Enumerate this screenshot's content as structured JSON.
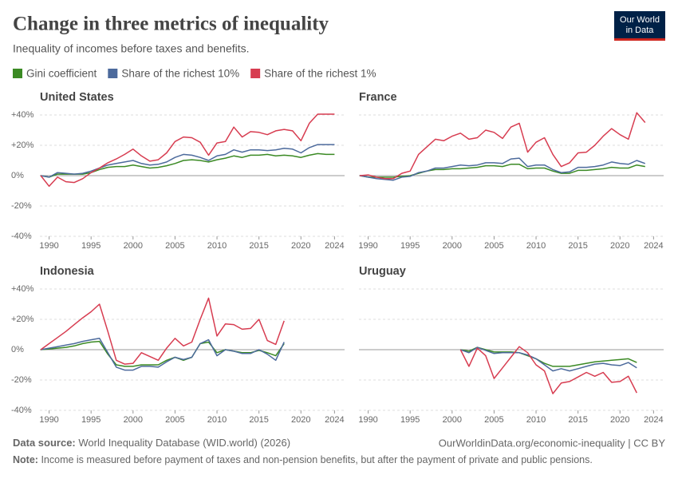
{
  "header": {
    "title": "Change in three metrics of inequality",
    "subtitle": "Inequality of incomes before taxes and benefits.",
    "logo": [
      "Our World",
      "in Data"
    ]
  },
  "footer": {
    "source_label": "Data source:",
    "source": "World Inequality Database (WID.world) (2026)",
    "link": "OurWorldinData.org/economic-inequality | CC BY",
    "note_label": "Note:",
    "note": "Income is measured before payment of taxes and non-pension benefits, but after the payment of private and public pensions."
  },
  "chart_data": [
    {
      "type": "line",
      "title": "United States",
      "xlim": [
        1988.9,
        2025.2
      ],
      "xticks": [
        1990,
        1995,
        2000,
        2005,
        2010,
        2015,
        2020,
        2024
      ],
      "ylim": [
        -40,
        40
      ],
      "yticks": [
        {
          "value": -40,
          "label": "-40%"
        },
        {
          "value": -20,
          "label": "-20%"
        },
        {
          "value": 0,
          "label": "0%"
        },
        {
          "value": 20,
          "label": "+20%"
        },
        {
          "value": 40,
          "label": "+40%"
        }
      ],
      "x": [
        1989,
        1990,
        1991,
        1992,
        1993,
        1994,
        1995,
        1996,
        1997,
        1998,
        1999,
        2000,
        2001,
        2002,
        2003,
        2004,
        2005,
        2006,
        2007,
        2008,
        2009,
        2010,
        2011,
        2012,
        2013,
        2014,
        2015,
        2016,
        2017,
        2018,
        2019,
        2020,
        2021,
        2022,
        2023,
        2024
      ],
      "series": [
        {
          "name": "Gini coefficient",
          "color": "#3b8a24",
          "values": [
            0,
            -1,
            1,
            1,
            1,
            1,
            2,
            4,
            5.5,
            6,
            6,
            7,
            6,
            5,
            5.5,
            6.5,
            8,
            10,
            10.5,
            10,
            9,
            10.5,
            11.5,
            13,
            12,
            13.5,
            13.5,
            14,
            13,
            13.5,
            13,
            12,
            13.5,
            14.5,
            14,
            14
          ]
        },
        {
          "name": "Share of the richest 10%",
          "color": "#4c6a9c",
          "values": [
            0,
            -1,
            2,
            1.5,
            1,
            1.5,
            3,
            5,
            7,
            8,
            9,
            10,
            8,
            7,
            7.5,
            9,
            12,
            14,
            13.5,
            12,
            10,
            13,
            14,
            17,
            15.5,
            17,
            17,
            16.5,
            17,
            18,
            17.5,
            15,
            18.5,
            20.5,
            20.5,
            20.5
          ]
        },
        {
          "name": "Share of the richest 1%",
          "color": "#d73c50",
          "values": [
            0,
            -7,
            -1,
            -4,
            -4.5,
            -2,
            2,
            5,
            8.5,
            11,
            14,
            17.5,
            13,
            9.5,
            10.5,
            15,
            22.5,
            25.5,
            25,
            22,
            13.5,
            21.5,
            22.5,
            32,
            25.5,
            29,
            28.5,
            27,
            29.5,
            30.5,
            29.5,
            23,
            34.5,
            40.5,
            40.5,
            40.5
          ]
        }
      ]
    },
    {
      "type": "line",
      "title": "France",
      "xlim": [
        1988.9,
        2025.2
      ],
      "xticks": [
        1990,
        1995,
        2000,
        2005,
        2010,
        2015,
        2020,
        2024
      ],
      "ylim": [
        -40,
        40
      ],
      "yticks": [
        -40,
        -20,
        0,
        20,
        40
      ],
      "x": [
        1989,
        1990,
        1991,
        1992,
        1993,
        1994,
        1995,
        1996,
        1997,
        1998,
        1999,
        2000,
        2001,
        2002,
        2003,
        2004,
        2005,
        2006,
        2007,
        2008,
        2009,
        2010,
        2011,
        2012,
        2013,
        2014,
        2015,
        2016,
        2017,
        2018,
        2019,
        2020,
        2021,
        2022,
        2023
      ],
      "series": [
        {
          "name": "Gini coefficient",
          "color": "#3b8a24",
          "values": [
            0,
            -1,
            -1,
            -1,
            -1,
            -0.5,
            0,
            1.5,
            3,
            4,
            4,
            4.5,
            4.5,
            5,
            5.5,
            6.5,
            6.5,
            6,
            7.5,
            7.5,
            4.5,
            5,
            5,
            3,
            1.5,
            1.5,
            3.5,
            3.5,
            4,
            4.5,
            5.5,
            5,
            5,
            7,
            6
          ]
        },
        {
          "name": "Share of the richest 10%",
          "color": "#4c6a9c",
          "values": [
            0,
            -1,
            -2,
            -2.5,
            -3,
            -1,
            -0.5,
            2,
            3,
            5,
            5,
            6,
            7,
            6.5,
            7,
            8.5,
            8.5,
            8,
            11,
            11.5,
            6,
            7,
            7,
            4,
            2,
            2.5,
            5.5,
            5.5,
            6,
            7,
            9,
            8,
            7.5,
            10,
            8
          ]
        },
        {
          "name": "Share of the richest 1%",
          "color": "#d73c50",
          "values": [
            0,
            0.5,
            -1,
            -2,
            -2,
            1.5,
            3,
            14,
            19,
            24,
            23,
            26,
            28,
            24,
            25,
            30,
            28.5,
            24.5,
            32,
            34.5,
            15.5,
            22,
            25,
            14,
            6,
            8.5,
            15,
            15.5,
            20,
            26,
            31,
            27,
            24,
            41.5,
            35
          ]
        }
      ]
    },
    {
      "type": "line",
      "title": "Indonesia",
      "xlim": [
        1988.9,
        2025.2
      ],
      "xticks": [
        1990,
        1995,
        2000,
        2005,
        2010,
        2015,
        2020,
        2024
      ],
      "ylim": [
        -40,
        40
      ],
      "yticks": [
        {
          "value": -40,
          "label": "-40%"
        },
        {
          "value": -20,
          "label": "-20%"
        },
        {
          "value": 0,
          "label": "0%"
        },
        {
          "value": 20,
          "label": "+20%"
        },
        {
          "value": 40,
          "label": "+40%"
        }
      ],
      "x": [
        1989,
        1990,
        1991,
        1992,
        1993,
        1994,
        1995,
        1996,
        1997,
        1998,
        1999,
        2000,
        2001,
        2002,
        2003,
        2004,
        2005,
        2006,
        2007,
        2008,
        2009,
        2010,
        2011,
        2012,
        2013,
        2014,
        2015,
        2016,
        2017,
        2018
      ],
      "series": [
        {
          "name": "Gini coefficient",
          "color": "#3b8a24",
          "values": [
            0,
            0.5,
            1,
            1.5,
            2.5,
            4,
            5,
            5.5,
            -3,
            -10,
            -11,
            -11,
            -10,
            -10,
            -10,
            -7,
            -5,
            -7,
            -5,
            4,
            5,
            -2,
            0,
            -1,
            -2,
            -2,
            -0.5,
            -2,
            -4,
            4
          ]
        },
        {
          "name": "Share of the richest 10%",
          "color": "#4c6a9c",
          "values": [
            0,
            1,
            2,
            3,
            4,
            5.5,
            6.5,
            7.5,
            -2,
            -11.5,
            -13.5,
            -13.5,
            -11,
            -11,
            -11.5,
            -8,
            -5,
            -6.5,
            -5,
            4,
            6.5,
            -4,
            0,
            -1,
            -2.5,
            -2.5,
            0,
            -3,
            -7,
            5
          ]
        },
        {
          "name": "Share of the richest 1%",
          "color": "#d73c50",
          "values": [
            0,
            4,
            8,
            12,
            16.5,
            21,
            25,
            30,
            12,
            -7,
            -9.5,
            -9,
            -2,
            -4.5,
            -7,
            1,
            7.5,
            2.5,
            5,
            20,
            34,
            9,
            17,
            16.5,
            13.5,
            14,
            20,
            6,
            3.5,
            19
          ]
        }
      ]
    },
    {
      "type": "line",
      "title": "Uruguay",
      "xlim": [
        1988.9,
        2025.2
      ],
      "xticks": [
        1990,
        1995,
        2000,
        2005,
        2010,
        2015,
        2020,
        2024
      ],
      "ylim": [
        -40,
        40
      ],
      "yticks": [
        -40,
        -20,
        0,
        20,
        40
      ],
      "x": [
        2001,
        2002,
        2003,
        2004,
        2005,
        2006,
        2007,
        2008,
        2009,
        2010,
        2011,
        2012,
        2013,
        2014,
        2015,
        2016,
        2017,
        2018,
        2019,
        2020,
        2021,
        2022
      ],
      "series": [
        {
          "name": "Gini coefficient",
          "color": "#3b8a24",
          "values": [
            0,
            -1,
            1.5,
            0,
            -1.5,
            -1.5,
            -1.5,
            -2,
            -4,
            -6,
            -9,
            -11,
            -11,
            -11,
            -10,
            -9,
            -8,
            -7.5,
            -7,
            -6.5,
            -6,
            -8.5
          ]
        },
        {
          "name": "Share of the richest 10%",
          "color": "#4c6a9c",
          "values": [
            0,
            -2,
            1.5,
            -0.5,
            -2.5,
            -2,
            -2,
            -2,
            -3.5,
            -6,
            -10,
            -14,
            -12.5,
            -14,
            -12.5,
            -11,
            -9.5,
            -9,
            -10,
            -10.5,
            -8.5,
            -12
          ]
        },
        {
          "name": "Share of the richest 1%",
          "color": "#d73c50",
          "values": [
            0,
            -11,
            1,
            -4,
            -19,
            -12,
            -5,
            2,
            -2,
            -10,
            -14,
            -29,
            -22,
            -21,
            -18,
            -15,
            -17.5,
            -15,
            -21.5,
            -21,
            -17.5,
            -28.5
          ]
        }
      ]
    }
  ]
}
